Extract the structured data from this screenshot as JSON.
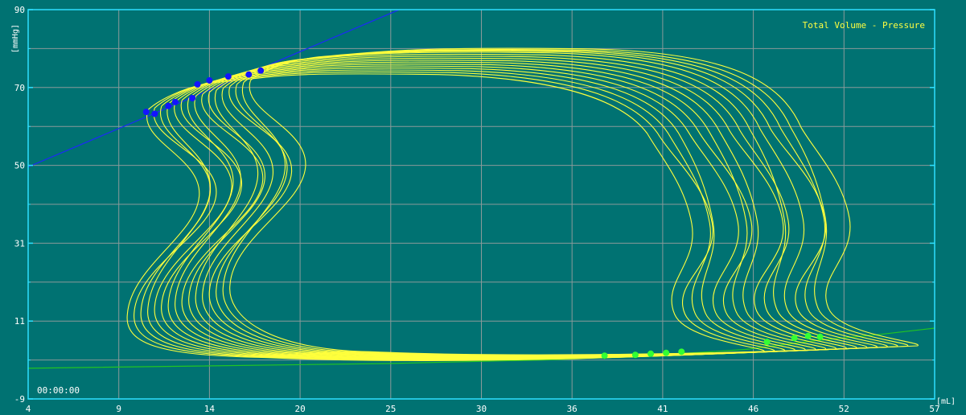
{
  "chart_data": {
    "type": "line",
    "title": "Total Volume - Pressure",
    "xlabel": "[mL]",
    "ylabel": "[mmHg]",
    "timestamp": "00:00:00",
    "xlim": [
      4,
      57
    ],
    "ylim": [
      -9,
      90
    ],
    "x_ticks": [
      "4",
      "9",
      "14",
      "20",
      "25",
      "30",
      "36",
      "41",
      "46",
      "52",
      "57"
    ],
    "y_ticks": [
      "-9",
      "11",
      "31",
      "50",
      "70",
      "90"
    ],
    "grid": true,
    "colors": {
      "background": "#007272",
      "grid": "#8a9a9a",
      "frame": "#2ee0ff",
      "loops": "#ffff3c",
      "espvr": "#1a2ef0",
      "edpvr": "#22c422",
      "end_systolic_points": "#1414ff",
      "end_diastolic_points": "#33ff33"
    },
    "series": [
      {
        "role": "espvr-line",
        "points": [
          [
            4,
            50
          ],
          [
            25.7,
            90
          ]
        ]
      },
      {
        "role": "edpvr-curve",
        "points": [
          [
            4,
            -1.2
          ],
          [
            25,
            0
          ],
          [
            35,
            1
          ],
          [
            41,
            2.2
          ],
          [
            46,
            3.6
          ],
          [
            50,
            5.8
          ],
          [
            54,
            7.5
          ],
          [
            57,
            9
          ]
        ]
      },
      {
        "role": "pv-loops",
        "loops": [
          {
            "esv": 11.0,
            "edv": 44.0,
            "pes": 64.5,
            "pmax": 73.5,
            "pmin": 0.5
          },
          {
            "esv": 11.4,
            "edv": 44.6,
            "pes": 65.0,
            "pmax": 74.0,
            "pmin": 0.6
          },
          {
            "esv": 11.8,
            "edv": 45.2,
            "pes": 65.5,
            "pmax": 74.5,
            "pmin": 0.7
          },
          {
            "esv": 12.2,
            "edv": 45.8,
            "pes": 66.0,
            "pmax": 75.0,
            "pmin": 0.8
          },
          {
            "esv": 12.6,
            "edv": 46.4,
            "pes": 66.5,
            "pmax": 75.5,
            "pmin": 0.9
          },
          {
            "esv": 13.0,
            "edv": 47.0,
            "pes": 67.0,
            "pmax": 76.0,
            "pmin": 1.0
          },
          {
            "esv": 13.4,
            "edv": 47.6,
            "pes": 67.5,
            "pmax": 76.5,
            "pmin": 1.1
          },
          {
            "esv": 13.8,
            "edv": 48.2,
            "pes": 68.0,
            "pmax": 77.0,
            "pmin": 1.2
          },
          {
            "esv": 14.2,
            "edv": 48.8,
            "pes": 68.5,
            "pmax": 77.5,
            "pmin": 1.3
          },
          {
            "esv": 14.6,
            "edv": 49.4,
            "pes": 69.0,
            "pmax": 78.0,
            "pmin": 1.4
          },
          {
            "esv": 15.0,
            "edv": 50.0,
            "pes": 69.5,
            "pmax": 78.5,
            "pmin": 1.5
          },
          {
            "esv": 15.4,
            "edv": 50.6,
            "pes": 70.0,
            "pmax": 79.0,
            "pmin": 1.6
          },
          {
            "esv": 15.8,
            "edv": 51.2,
            "pes": 70.5,
            "pmax": 79.3,
            "pmin": 1.7
          },
          {
            "esv": 16.2,
            "edv": 51.8,
            "pes": 71.0,
            "pmax": 79.5,
            "pmin": 1.8
          },
          {
            "esv": 16.6,
            "edv": 52.4,
            "pes": 71.5,
            "pmax": 79.7,
            "pmin": 1.9
          },
          {
            "esv": 17.0,
            "edv": 53.0,
            "pes": 72.0,
            "pmax": 80.0,
            "pmin": 2.0
          }
        ]
      },
      {
        "role": "end-systolic-points",
        "points": [
          [
            10.9,
            64.0
          ],
          [
            11.4,
            63.5
          ],
          [
            12.2,
            65.5
          ],
          [
            12.6,
            66.5
          ],
          [
            13.6,
            67.5
          ],
          [
            13.9,
            71.0
          ],
          [
            14.6,
            72.0
          ],
          [
            15.7,
            73.0
          ],
          [
            16.9,
            73.5
          ],
          [
            17.6,
            74.5
          ]
        ]
      },
      {
        "role": "end-diastolic-points",
        "points": [
          [
            37.7,
            2.0
          ],
          [
            39.5,
            2.2
          ],
          [
            40.4,
            2.5
          ],
          [
            41.3,
            2.7
          ],
          [
            42.2,
            3.0
          ],
          [
            47.2,
            5.5
          ],
          [
            48.8,
            6.5
          ],
          [
            49.6,
            7.0
          ],
          [
            50.3,
            6.8
          ]
        ]
      }
    ]
  }
}
